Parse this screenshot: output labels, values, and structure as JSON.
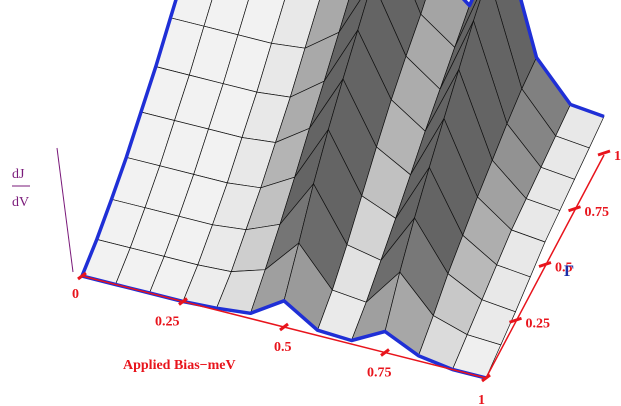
{
  "chart_data": {
    "type": "surface",
    "x_axis": {
      "label": "Applied Bias−meV",
      "ticks": [
        "0",
        "0.25",
        "0.5",
        "0.75",
        "1"
      ],
      "range": [
        0,
        1
      ]
    },
    "y_axis": {
      "label": "Γ",
      "ticks": [
        "0.25",
        "0.5",
        "0.75",
        "1"
      ],
      "range": [
        0,
        1
      ]
    },
    "z_axis": {
      "label_top": "dJ",
      "label_bottom": "dV"
    },
    "bias": [
      0.0,
      0.083,
      0.167,
      0.25,
      0.333,
      0.417,
      0.5,
      0.583,
      0.667,
      0.75,
      0.833,
      0.917,
      1.0
    ],
    "gamma": [
      0.0,
      0.125,
      0.25,
      0.375,
      0.5,
      0.625,
      0.75,
      0.875,
      1.0
    ],
    "conductance": [
      [
        0.0,
        0.0,
        0.0,
        0.0,
        0.01,
        0.03,
        0.15,
        0.03,
        0.02,
        0.12,
        0.03,
        0.0,
        0.0
      ],
      [
        0.05,
        0.05,
        0.05,
        0.05,
        0.06,
        0.12,
        0.32,
        0.1,
        0.08,
        0.3,
        0.1,
        0.04,
        0.03
      ],
      [
        0.12,
        0.12,
        0.12,
        0.12,
        0.14,
        0.22,
        0.5,
        0.2,
        0.16,
        0.45,
        0.18,
        0.08,
        0.06
      ],
      [
        0.2,
        0.2,
        0.2,
        0.2,
        0.22,
        0.33,
        0.65,
        0.32,
        0.24,
        0.58,
        0.24,
        0.12,
        0.1
      ],
      [
        0.3,
        0.3,
        0.3,
        0.3,
        0.32,
        0.45,
        0.78,
        0.44,
        0.33,
        0.7,
        0.3,
        0.16,
        0.14
      ],
      [
        0.4,
        0.4,
        0.4,
        0.4,
        0.42,
        0.56,
        0.9,
        0.55,
        0.42,
        0.82,
        0.35,
        0.18,
        0.16
      ],
      [
        0.52,
        0.52,
        0.52,
        0.52,
        0.54,
        0.68,
        1.02,
        0.64,
        0.5,
        0.94,
        0.4,
        0.2,
        0.18
      ],
      [
        0.64,
        0.64,
        0.64,
        0.64,
        0.66,
        0.8,
        1.14,
        0.72,
        0.58,
        1.04,
        0.44,
        0.22,
        0.2
      ],
      [
        0.76,
        0.76,
        0.76,
        0.76,
        0.8,
        0.92,
        1.28,
        0.82,
        0.66,
        1.12,
        0.46,
        0.24,
        0.22
      ]
    ],
    "colors": {
      "frame": "#1f2fd6",
      "ticks": "#e8141c",
      "z_axis": "#7a1a7a",
      "surface_light": "#f2f2f2",
      "surface_dark": "#6a6a6a"
    },
    "grid": true
  }
}
